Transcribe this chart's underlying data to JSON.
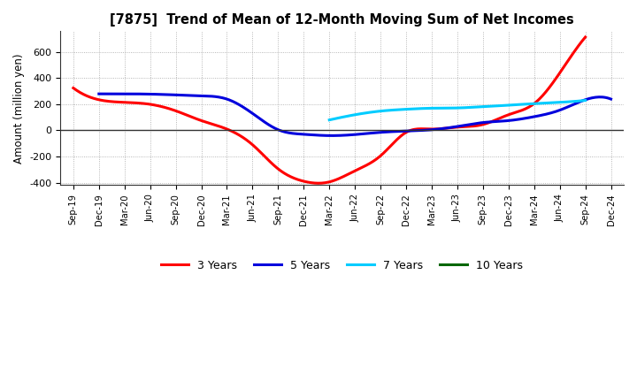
{
  "title": "[7875]  Trend of Mean of 12-Month Moving Sum of Net Incomes",
  "ylabel": "Amount (million yen)",
  "ylim": [
    -420,
    760
  ],
  "yticks": [
    -400,
    -200,
    0,
    200,
    400,
    600
  ],
  "background_color": "#ffffff",
  "grid_color": "#999999",
  "x_labels": [
    "Sep-19",
    "Dec-19",
    "Mar-20",
    "Jun-20",
    "Sep-20",
    "Dec-20",
    "Mar-21",
    "Jun-21",
    "Sep-21",
    "Dec-21",
    "Mar-22",
    "Jun-22",
    "Sep-22",
    "Dec-22",
    "Mar-23",
    "Jun-23",
    "Sep-23",
    "Dec-23",
    "Mar-24",
    "Jun-24",
    "Sep-24",
    "Dec-24"
  ],
  "series": [
    {
      "name": "3 Years",
      "color": "#ff0000",
      "lw": 2.2,
      "xs": [
        0,
        1,
        2,
        3,
        4,
        5,
        6,
        7,
        8,
        9,
        10,
        11,
        12,
        13,
        14,
        15,
        16,
        17,
        18,
        19,
        20
      ],
      "ys": [
        325,
        235,
        215,
        200,
        150,
        75,
        10,
        -110,
        -295,
        -390,
        -395,
        -310,
        -195,
        -15,
        10,
        25,
        45,
        120,
        205,
        440,
        715
      ]
    },
    {
      "name": "5 Years",
      "color": "#0000dd",
      "lw": 2.2,
      "xs": [
        1,
        2,
        3,
        4,
        5,
        6,
        7,
        8,
        9,
        10,
        11,
        12,
        13,
        14,
        15,
        16,
        17,
        18,
        19,
        20,
        21
      ],
      "ys": [
        280,
        280,
        278,
        272,
        265,
        240,
        130,
        5,
        -30,
        -40,
        -32,
        -15,
        -5,
        5,
        30,
        60,
        75,
        105,
        155,
        235,
        240
      ]
    },
    {
      "name": "7 Years",
      "color": "#00ccff",
      "lw": 2.2,
      "xs": [
        10,
        11,
        12,
        13,
        14,
        15,
        16,
        17,
        18,
        19,
        20
      ],
      "ys": [
        80,
        120,
        148,
        162,
        170,
        172,
        182,
        193,
        205,
        215,
        230
      ]
    },
    {
      "name": "10 Years",
      "color": "#006600",
      "lw": 2.2,
      "xs": [],
      "ys": []
    }
  ],
  "legend_labels": [
    "3 Years",
    "5 Years",
    "7 Years",
    "10 Years"
  ],
  "legend_colors": [
    "#ff0000",
    "#0000dd",
    "#00ccff",
    "#006600"
  ]
}
